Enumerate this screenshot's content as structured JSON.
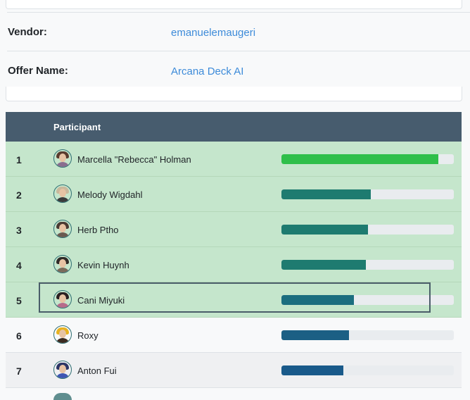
{
  "offer_info": {
    "vendor_label": "Vendor:",
    "vendor_value": "emanuelemaugeri",
    "offer_label": "Offer Name:",
    "offer_value": "Arcana Deck AI"
  },
  "table": {
    "header_participant": "Participant",
    "rows": [
      {
        "rank": "1",
        "name": "Marcella \"Rebecca\" Holman",
        "progress": 0.91,
        "bar_color": "#2fbf4a",
        "row_style": "green",
        "avatar_hair": "#5a3b2e",
        "avatar_body": "#8a6e8f"
      },
      {
        "rank": "2",
        "name": "Melody Wigdahl",
        "progress": 0.52,
        "bar_color": "#1e7b70",
        "row_style": "green",
        "avatar_hair": "#c9b89c",
        "avatar_body": "#3b3b3b"
      },
      {
        "rank": "3",
        "name": "Herb Ptho",
        "progress": 0.5,
        "bar_color": "#1e7b70",
        "row_style": "green",
        "avatar_hair": "#4a3a33",
        "avatar_body": "#6b5a50"
      },
      {
        "rank": "4",
        "name": "Kevin Huynh",
        "progress": 0.49,
        "bar_color": "#1e7b70",
        "row_style": "green",
        "avatar_hair": "#2f2a27",
        "avatar_body": "#7a6a5a"
      },
      {
        "rank": "5",
        "name": "Cani Miyuki",
        "progress": 0.42,
        "bar_color": "#1b6e7f",
        "row_style": "green",
        "avatar_hair": "#2a1f22",
        "avatar_body": "#b76b8a"
      },
      {
        "rank": "6",
        "name": "Roxy",
        "progress": 0.39,
        "bar_color": "#1b5f84",
        "row_style": "white",
        "avatar_hair": "#e8b21f",
        "avatar_body": "#3b2a20"
      },
      {
        "rank": "7",
        "name": "Anton Fui",
        "progress": 0.36,
        "bar_color": "#195a8a",
        "row_style": "gray",
        "avatar_hair": "#2b3566",
        "avatar_body": "#3f56b3"
      }
    ]
  }
}
